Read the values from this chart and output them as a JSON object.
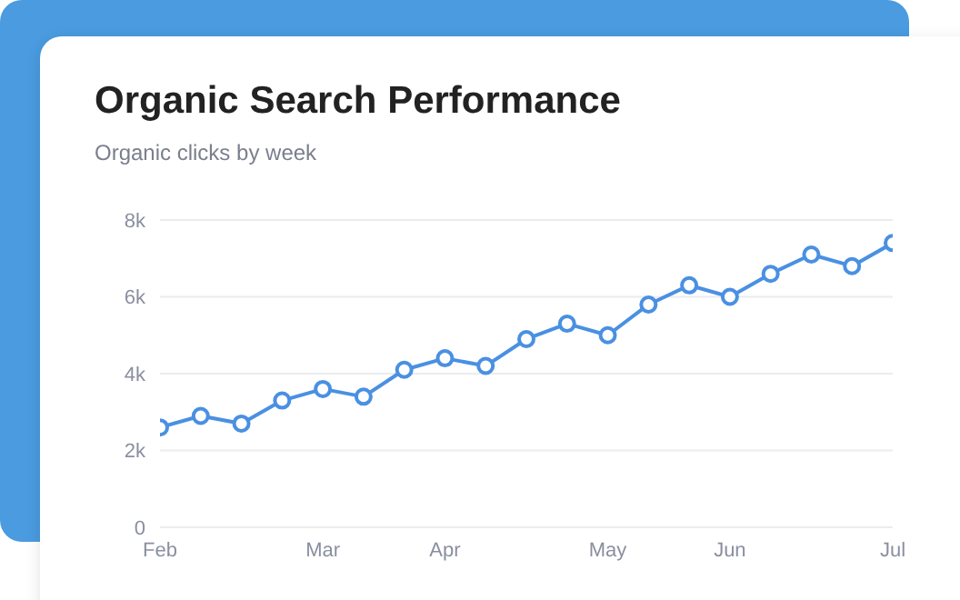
{
  "chart_data": {
    "type": "line",
    "title": "Organic Search Performance",
    "subtitle": "Organic clicks by week",
    "categories": [
      "Feb",
      null,
      null,
      null,
      "Mar",
      null,
      null,
      "Apr",
      null,
      null,
      null,
      "May",
      null,
      null,
      "Jun",
      null,
      null,
      null,
      "Jul"
    ],
    "series": [
      {
        "color": "#4a90e2",
        "values": [
          2600,
          2900,
          2700,
          3300,
          3600,
          3400,
          4100,
          4400,
          4200,
          4900,
          5300,
          5000,
          5800,
          6300,
          6000,
          6600,
          7100,
          6800,
          7400
        ]
      }
    ],
    "ylim": [
      0,
      8000
    ],
    "yticks": [
      {
        "value": 0,
        "label": "0"
      },
      {
        "value": 2000,
        "label": "2k"
      },
      {
        "value": 4000,
        "label": "4k"
      },
      {
        "value": 6000,
        "label": "6k"
      },
      {
        "value": 8000,
        "label": "8k"
      }
    ],
    "grid": "y",
    "legend": false,
    "marker": "circle",
    "line_style": "solid"
  }
}
